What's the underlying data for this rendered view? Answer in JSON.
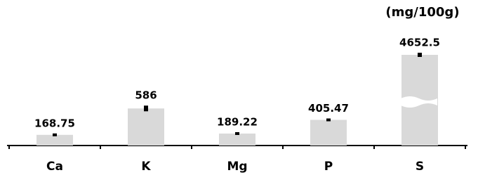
{
  "chart_data": {
    "type": "bar",
    "unit_label": "(mg/100g)",
    "categories": [
      "Ca",
      "K",
      "Mg",
      "P",
      "S"
    ],
    "values": [
      168.75,
      586,
      189.22,
      405.47,
      4652.5
    ],
    "value_labels": [
      "168.75",
      "586",
      "189.22",
      "405.47",
      "4652.5"
    ],
    "errors": [
      5,
      45,
      5,
      10,
      10
    ],
    "color": "#d9d9d9",
    "axis_break": true
  }
}
